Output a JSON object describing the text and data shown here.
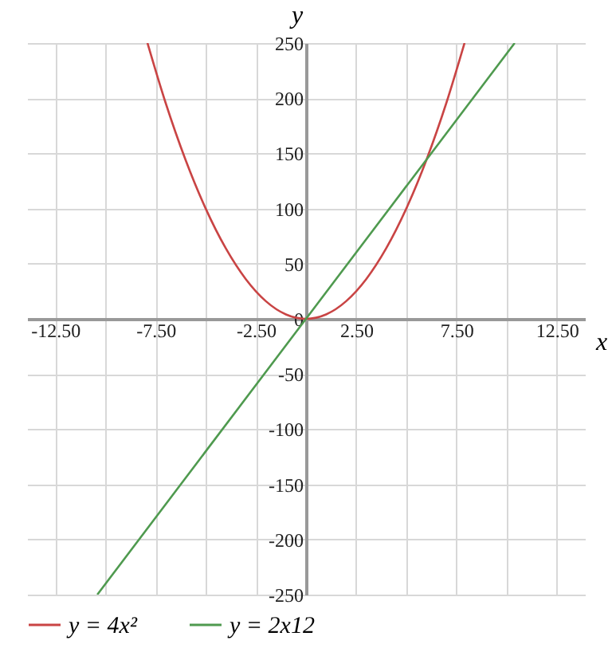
{
  "chart_data": {
    "type": "line",
    "xlabel": "x",
    "ylabel": "y",
    "xlim": [
      -13.9,
      13.9
    ],
    "ylim": [
      -250,
      250
    ],
    "xticks": [
      {
        "value": -12.5,
        "label": "-12.50"
      },
      {
        "value": -10,
        "label": null
      },
      {
        "value": -7.5,
        "label": "-7.50"
      },
      {
        "value": -5,
        "label": null
      },
      {
        "value": -2.5,
        "label": "-2.50"
      },
      {
        "value": 0,
        "label": null
      },
      {
        "value": 2.5,
        "label": "2.50"
      },
      {
        "value": 5,
        "label": null
      },
      {
        "value": 7.5,
        "label": "7.50"
      },
      {
        "value": 10,
        "label": null
      },
      {
        "value": 12.5,
        "label": "12.50"
      }
    ],
    "yticks": [
      -250,
      -200,
      -150,
      -100,
      -50,
      0,
      50,
      100,
      150,
      200,
      250
    ],
    "grid": true,
    "legend": "bottom left",
    "marker": "none",
    "line_style": "solid",
    "series": [
      {
        "name": "y = 4x²",
        "color": "#c94444",
        "x": [
          -7.9,
          -7,
          -6,
          -5,
          -4,
          -3,
          -2,
          -1,
          -0.5,
          0,
          0.5,
          1,
          2,
          3,
          4,
          5,
          6,
          7,
          7.9
        ],
        "values": [
          250,
          196,
          144,
          100,
          64,
          36,
          16,
          4,
          1,
          0,
          1,
          4,
          16,
          36,
          64,
          100,
          144,
          196,
          250
        ]
      },
      {
        "name": "y = 2x12",
        "color": "#4f9a4f",
        "x": [
          -10.4,
          0,
          10.4
        ],
        "values": [
          -250,
          0,
          250
        ]
      }
    ]
  }
}
